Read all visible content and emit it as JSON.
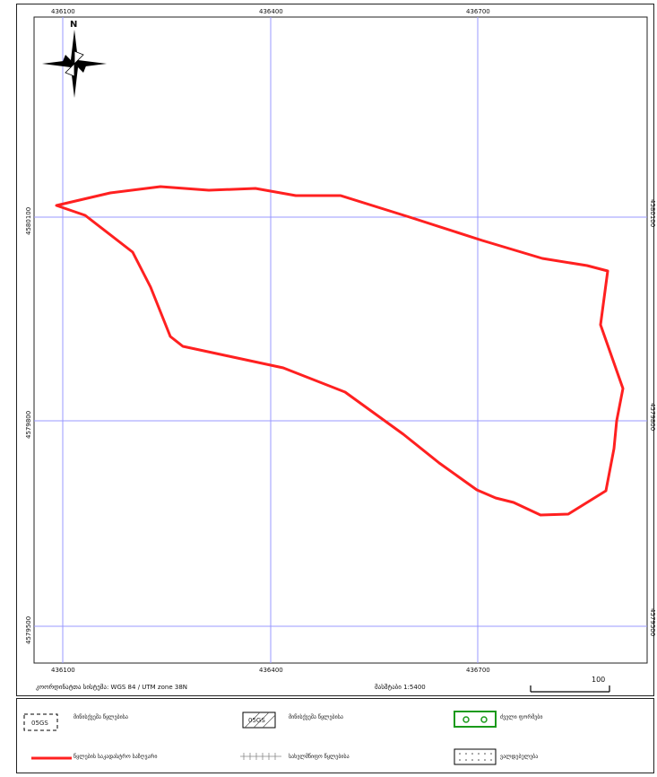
{
  "map": {
    "north_label": "N",
    "x_ticks": [
      "436100",
      "436400",
      "436700"
    ],
    "y_ticks": [
      "4580100",
      "4579800",
      "4579500"
    ],
    "y_ticks_right": [
      "4580100",
      "4579800",
      "4579500"
    ],
    "projection_text": "კოორდინატთა სისტემა: WGS 84 / UTM zone 38N",
    "scale_text": "მასშტაბი 1:5400",
    "scalebar_label": "100",
    "colors": {
      "grid": "#9999ff",
      "boundary": "#ff2020",
      "frame": "#222222"
    }
  },
  "legend": {
    "items": [
      {
        "icon": "dashed-box-with-code-icon",
        "code": "05GS",
        "label": "მიწისქვეშა წყლებისა"
      },
      {
        "icon": "hatched-box-with-code-icon",
        "code": "05GS",
        "label": "მიწისქვეშა წყლებისა"
      },
      {
        "icon": "green-circles-box-icon",
        "label": "ძველი ფორმები"
      },
      {
        "icon": "red-line-icon",
        "label": "წყლების საკადასტრო საზღვარი"
      },
      {
        "icon": "cross-line-icon",
        "label": "სახელმწიფო წყლებისა"
      },
      {
        "icon": "dotted-box-icon",
        "label": "ვალდებულება"
      }
    ]
  }
}
